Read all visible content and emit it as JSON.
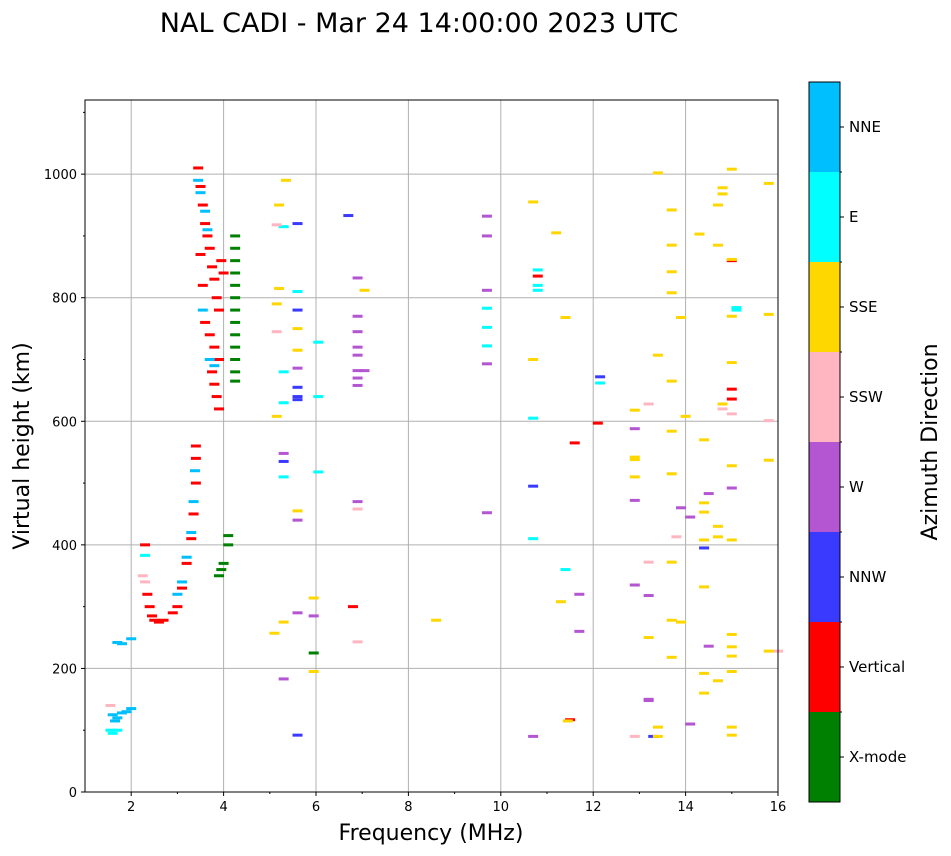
{
  "chart_data": {
    "type": "scatter",
    "title": "NAL CADI - Mar 24 14:00:00 2023 UTC",
    "xlabel": "Frequency (MHz)",
    "ylabel": "Virtual height (km)",
    "xlim": [
      1,
      16
    ],
    "ylim": [
      0,
      1120
    ],
    "xticks": [
      2,
      4,
      6,
      8,
      10,
      12,
      14,
      16
    ],
    "yticks": [
      0,
      200,
      400,
      600,
      800,
      1000
    ],
    "grid": true,
    "colorbar": {
      "title": "Azimuth Direction",
      "categories": [
        {
          "name": "X-mode",
          "color": "#008000"
        },
        {
          "name": "Vertical",
          "color": "#ff0000"
        },
        {
          "name": "NNW",
          "color": "#3a3aff"
        },
        {
          "name": "W",
          "color": "#b455d2"
        },
        {
          "name": "SSW",
          "color": "#ffb6c1"
        },
        {
          "name": "SSE",
          "color": "#ffd700"
        },
        {
          "name": "E",
          "color": "#00ffff"
        },
        {
          "name": "NNE",
          "color": "#00bfff"
        }
      ]
    },
    "series": [
      {
        "name": "Vertical",
        "points": [
          [
            2.3,
            400
          ],
          [
            2.35,
            320
          ],
          [
            2.4,
            300
          ],
          [
            2.45,
            285
          ],
          [
            2.5,
            278
          ],
          [
            2.6,
            275
          ],
          [
            2.7,
            278
          ],
          [
            2.9,
            290
          ],
          [
            3.0,
            300
          ],
          [
            3.1,
            330
          ],
          [
            3.2,
            370
          ],
          [
            3.3,
            410
          ],
          [
            3.35,
            450
          ],
          [
            3.4,
            500
          ],
          [
            3.4,
            540
          ],
          [
            3.4,
            560
          ],
          [
            3.45,
            1010
          ],
          [
            3.5,
            980
          ],
          [
            3.55,
            950
          ],
          [
            3.6,
            920
          ],
          [
            3.65,
            900
          ],
          [
            3.7,
            880
          ],
          [
            3.75,
            850
          ],
          [
            3.8,
            830
          ],
          [
            3.85,
            800
          ],
          [
            3.9,
            780
          ],
          [
            3.6,
            760
          ],
          [
            3.7,
            740
          ],
          [
            3.8,
            720
          ],
          [
            3.9,
            700
          ],
          [
            3.75,
            680
          ],
          [
            3.8,
            660
          ],
          [
            3.85,
            640
          ],
          [
            3.9,
            620
          ],
          [
            3.95,
            860
          ],
          [
            4.0,
            840
          ],
          [
            3.5,
            870
          ],
          [
            3.55,
            820
          ],
          [
            6.8,
            300
          ],
          [
            10.8,
            835
          ],
          [
            11.5,
            117
          ],
          [
            11.6,
            565
          ],
          [
            12.1,
            597
          ],
          [
            15.0,
            860
          ],
          [
            15.0,
            636
          ],
          [
            15.0,
            652
          ]
        ]
      },
      {
        "name": "NNE",
        "points": [
          [
            1.6,
            125
          ],
          [
            1.65,
            115
          ],
          [
            1.7,
            120
          ],
          [
            1.8,
            128
          ],
          [
            1.9,
            130
          ],
          [
            2.0,
            135
          ],
          [
            2.0,
            248
          ],
          [
            1.8,
            240
          ],
          [
            1.7,
            242
          ],
          [
            3.0,
            320
          ],
          [
            3.1,
            340
          ],
          [
            3.2,
            380
          ],
          [
            3.3,
            420
          ],
          [
            3.35,
            470
          ],
          [
            3.38,
            520
          ],
          [
            3.45,
            990
          ],
          [
            3.5,
            970
          ],
          [
            3.6,
            940
          ],
          [
            3.65,
            910
          ],
          [
            3.55,
            780
          ],
          [
            3.7,
            700
          ],
          [
            3.8,
            690
          ]
        ]
      },
      {
        "name": "X-mode",
        "points": [
          [
            3.9,
            350
          ],
          [
            3.95,
            360
          ],
          [
            4.0,
            370
          ],
          [
            4.1,
            400
          ],
          [
            4.1,
            415
          ],
          [
            4.25,
            900
          ],
          [
            4.25,
            880
          ],
          [
            4.25,
            860
          ],
          [
            4.25,
            840
          ],
          [
            4.25,
            820
          ],
          [
            4.25,
            800
          ],
          [
            4.25,
            780
          ],
          [
            4.25,
            760
          ],
          [
            4.25,
            740
          ],
          [
            4.25,
            720
          ],
          [
            4.25,
            700
          ],
          [
            4.25,
            680
          ],
          [
            4.25,
            665
          ],
          [
            5.95,
            225
          ]
        ]
      },
      {
        "name": "E",
        "points": [
          [
            1.55,
            100
          ],
          [
            1.6,
            95
          ],
          [
            1.7,
            100
          ],
          [
            2.3,
            383
          ],
          [
            5.3,
            915
          ],
          [
            5.3,
            680
          ],
          [
            5.3,
            630
          ],
          [
            5.3,
            510
          ],
          [
            5.6,
            810
          ],
          [
            6.05,
            728
          ],
          [
            6.05,
            640
          ],
          [
            6.05,
            518
          ],
          [
            9.7,
            783
          ],
          [
            9.7,
            752
          ],
          [
            9.7,
            722
          ],
          [
            10.7,
            605
          ],
          [
            10.7,
            410
          ],
          [
            10.8,
            845
          ],
          [
            10.8,
            820
          ],
          [
            10.8,
            812
          ],
          [
            11.4,
            360
          ],
          [
            12.15,
            662
          ],
          [
            15.1,
            784
          ],
          [
            15.1,
            780
          ]
        ]
      },
      {
        "name": "NNW",
        "points": [
          [
            5.3,
            535
          ],
          [
            5.6,
            920
          ],
          [
            5.6,
            780
          ],
          [
            5.6,
            655
          ],
          [
            5.6,
            640
          ],
          [
            5.6,
            635
          ],
          [
            5.6,
            92
          ],
          [
            6.7,
            933
          ],
          [
            10.7,
            495
          ],
          [
            12.15,
            672
          ],
          [
            13.3,
            90
          ],
          [
            14.4,
            395
          ]
        ]
      },
      {
        "name": "W",
        "points": [
          [
            5.3,
            548
          ],
          [
            5.3,
            183
          ],
          [
            5.6,
            686
          ],
          [
            5.6,
            440
          ],
          [
            5.6,
            290
          ],
          [
            5.95,
            285
          ],
          [
            6.9,
            832
          ],
          [
            6.9,
            770
          ],
          [
            6.9,
            745
          ],
          [
            6.9,
            720
          ],
          [
            6.9,
            707
          ],
          [
            6.9,
            682
          ],
          [
            6.9,
            670
          ],
          [
            6.9,
            658
          ],
          [
            6.9,
            470
          ],
          [
            7.05,
            682
          ],
          [
            9.7,
            932
          ],
          [
            9.7,
            900
          ],
          [
            9.7,
            812
          ],
          [
            9.7,
            693
          ],
          [
            9.7,
            452
          ],
          [
            10.7,
            90
          ],
          [
            11.7,
            320
          ],
          [
            11.7,
            260
          ],
          [
            12.9,
            588
          ],
          [
            12.9,
            472
          ],
          [
            12.9,
            335
          ],
          [
            13.2,
            318
          ],
          [
            13.2,
            150
          ],
          [
            13.2,
            148
          ],
          [
            13.9,
            460
          ],
          [
            14.1,
            445
          ],
          [
            14.1,
            110
          ],
          [
            14.5,
            483
          ],
          [
            14.5,
            236
          ],
          [
            15.0,
            492
          ]
        ]
      },
      {
        "name": "SSW",
        "points": [
          [
            1.55,
            140
          ],
          [
            2.25,
            350
          ],
          [
            2.3,
            340
          ],
          [
            5.15,
            918
          ],
          [
            5.15,
            745
          ],
          [
            6.9,
            243
          ],
          [
            6.9,
            458
          ],
          [
            12.9,
            90
          ],
          [
            13.2,
            628
          ],
          [
            13.2,
            372
          ],
          [
            13.8,
            413
          ],
          [
            14.8,
            620
          ],
          [
            15.0,
            612
          ],
          [
            15.8,
            601
          ],
          [
            16.0,
            228
          ]
        ]
      },
      {
        "name": "SSE",
        "points": [
          [
            5.1,
            257
          ],
          [
            5.15,
            790
          ],
          [
            5.15,
            608
          ],
          [
            5.2,
            950
          ],
          [
            5.2,
            815
          ],
          [
            5.3,
            275
          ],
          [
            5.35,
            990
          ],
          [
            5.6,
            750
          ],
          [
            5.6,
            715
          ],
          [
            5.6,
            455
          ],
          [
            5.95,
            314
          ],
          [
            5.95,
            195
          ],
          [
            7.05,
            812
          ],
          [
            8.6,
            278
          ],
          [
            10.7,
            955
          ],
          [
            10.7,
            700
          ],
          [
            11.2,
            905
          ],
          [
            11.3,
            308
          ],
          [
            11.4,
            768
          ],
          [
            11.45,
            115
          ],
          [
            12.9,
            618
          ],
          [
            12.9,
            542
          ],
          [
            12.9,
            538
          ],
          [
            12.9,
            510
          ],
          [
            13.2,
            250
          ],
          [
            13.4,
            1002
          ],
          [
            13.4,
            707
          ],
          [
            13.4,
            105
          ],
          [
            13.4,
            90
          ],
          [
            13.7,
            942
          ],
          [
            13.7,
            885
          ],
          [
            13.7,
            842
          ],
          [
            13.7,
            808
          ],
          [
            13.7,
            665
          ],
          [
            13.7,
            584
          ],
          [
            13.7,
            515
          ],
          [
            13.7,
            372
          ],
          [
            13.7,
            278
          ],
          [
            13.7,
            218
          ],
          [
            13.9,
            768
          ],
          [
            13.9,
            275
          ],
          [
            14.0,
            608
          ],
          [
            14.3,
            903
          ],
          [
            14.4,
            570
          ],
          [
            14.4,
            468
          ],
          [
            14.4,
            453
          ],
          [
            14.4,
            408
          ],
          [
            14.4,
            332
          ],
          [
            14.4,
            192
          ],
          [
            14.4,
            160
          ],
          [
            14.7,
            885
          ],
          [
            14.7,
            950
          ],
          [
            14.7,
            430
          ],
          [
            14.7,
            413
          ],
          [
            14.7,
            180
          ],
          [
            14.8,
            978
          ],
          [
            14.8,
            968
          ],
          [
            14.8,
            628
          ],
          [
            15.0,
            1008
          ],
          [
            15.0,
            862
          ],
          [
            15.0,
            770
          ],
          [
            15.0,
            695
          ],
          [
            15.0,
            528
          ],
          [
            15.0,
            408
          ],
          [
            15.0,
            255
          ],
          [
            15.0,
            235
          ],
          [
            15.0,
            220
          ],
          [
            15.0,
            195
          ],
          [
            15.0,
            105
          ],
          [
            15.0,
            92
          ],
          [
            15.8,
            985
          ],
          [
            15.8,
            773
          ],
          [
            15.8,
            537
          ],
          [
            15.8,
            228
          ]
        ]
      }
    ]
  }
}
